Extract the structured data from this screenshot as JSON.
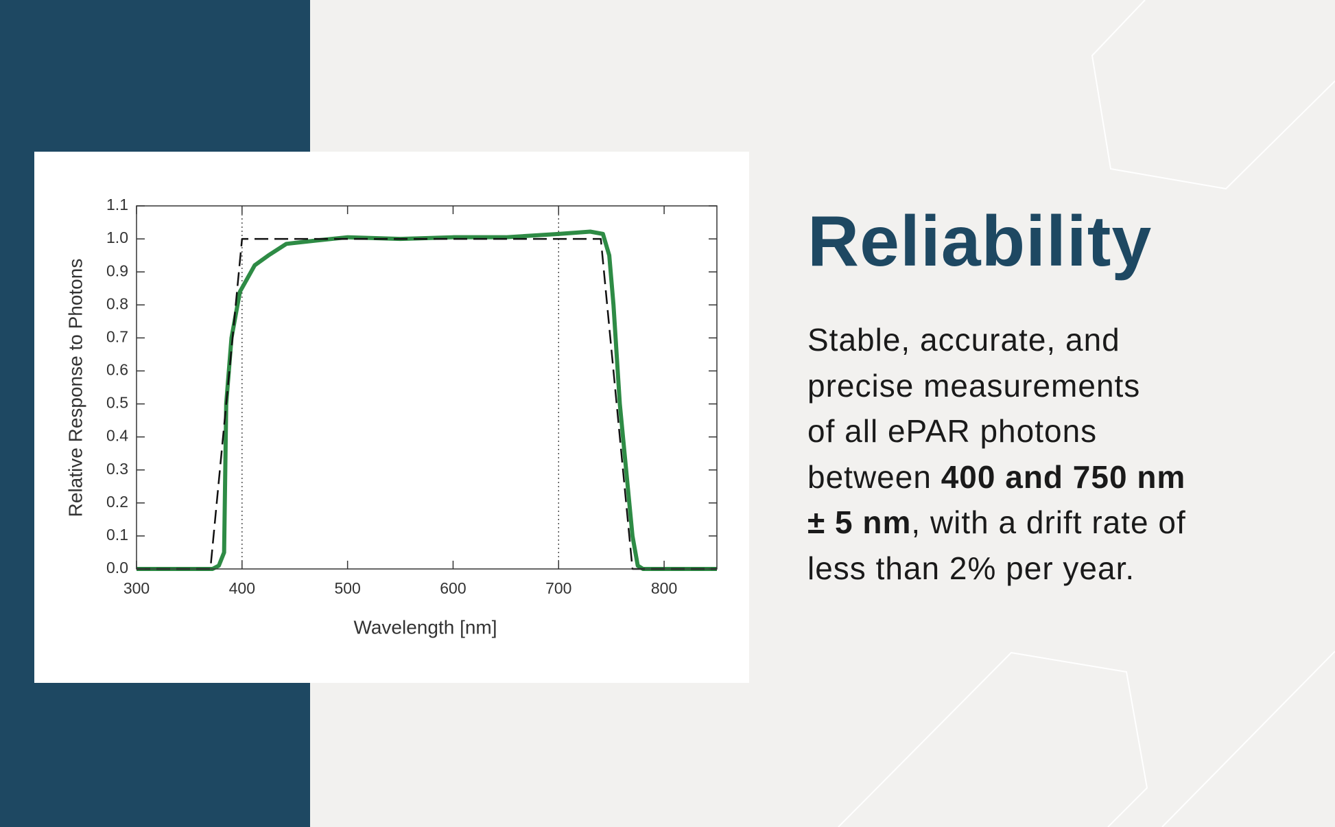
{
  "chart_data": {
    "type": "line",
    "xlabel": "Wavelength [nm]",
    "ylabel": "Relative Response to Photons",
    "xlim": [
      300,
      850
    ],
    "ylim": [
      0,
      1.1
    ],
    "xticks": [
      300,
      400,
      500,
      600,
      700,
      800
    ],
    "yticks": [
      {
        "value": 0,
        "label": "0.0"
      },
      0.1,
      0.2,
      0.3,
      0.4,
      0.5,
      0.6,
      0.7,
      0.8,
      0.9,
      {
        "value": 1,
        "label": "1.0"
      },
      1.1
    ],
    "vlines": [
      400,
      700
    ],
    "grid": false,
    "series": [
      {
        "color": "#2e8b45",
        "style": "solid",
        "x": [
          300,
          372,
          378,
          383,
          385,
          390,
          398,
          412,
          425,
          442,
          470,
          500,
          550,
          600,
          650,
          700,
          730,
          742,
          748,
          752,
          758,
          770,
          775,
          780,
          850
        ],
        "values": [
          0,
          0,
          0.01,
          0.05,
          0.5,
          0.7,
          0.84,
          0.92,
          0.95,
          0.985,
          0.995,
          1.005,
          1.0,
          1.005,
          1.005,
          1.015,
          1.022,
          1.015,
          0.95,
          0.8,
          0.5,
          0.1,
          0.01,
          0,
          0
        ]
      },
      {
        "color": "#111111",
        "style": "dashed",
        "x": [
          300,
          370,
          400,
          740,
          770,
          850
        ],
        "values": [
          0,
          0,
          1,
          1,
          0,
          0
        ]
      }
    ]
  },
  "text": {
    "title": "Reliability",
    "body": [
      [
        {
          "text": "Stable, accurate, and",
          "bold": false
        }
      ],
      [
        {
          "text": "precise measurements",
          "bold": false
        }
      ],
      [
        {
          "text": "of all ePAR photons",
          "bold": false
        }
      ],
      [
        {
          "text": "between ",
          "bold": false
        },
        {
          "text": "400 and 750 nm",
          "bold": true
        }
      ],
      [
        {
          "text": "± 5 nm",
          "bold": true
        },
        {
          "text": ", with a drift rate of",
          "bold": false
        }
      ],
      [
        {
          "text": "less than 2% per year.",
          "bold": false
        }
      ]
    ]
  }
}
